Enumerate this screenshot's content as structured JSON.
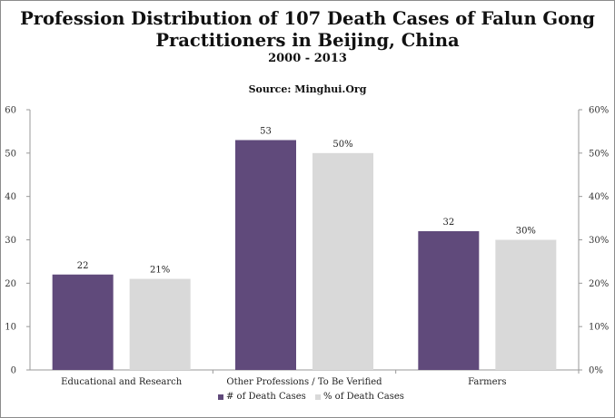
{
  "chart_data": {
    "type": "bar",
    "title": "Profession Distribution of 107 Death Cases of Falun Gong",
    "title_line2": "Practitioners in Beijing, China",
    "subtitle": "2000 - 2013",
    "source": "Source: Minghui.Org",
    "categories": [
      "Educational and Research",
      "Other Professions / To Be Verified",
      "Farmers"
    ],
    "series": [
      {
        "name": "# of Death Cases",
        "axis": "left",
        "values": [
          22,
          53,
          32
        ],
        "labels": [
          "22",
          "53",
          "32"
        ],
        "color": "#604a7b"
      },
      {
        "name": "% of Death Cases",
        "axis": "right",
        "values": [
          21,
          50,
          30
        ],
        "labels": [
          "21%",
          "50%",
          "30%"
        ],
        "color": "#d9d9d9"
      }
    ],
    "y_left": {
      "min": 0,
      "max": 60,
      "ticks": [
        "0",
        "10",
        "20",
        "30",
        "40",
        "50",
        "60"
      ]
    },
    "y_right": {
      "min": 0,
      "max": 60,
      "ticks": [
        "0%",
        "10%",
        "20%",
        "30%",
        "40%",
        "50%",
        "60%"
      ]
    },
    "grid": false,
    "legend_position": "bottom"
  }
}
